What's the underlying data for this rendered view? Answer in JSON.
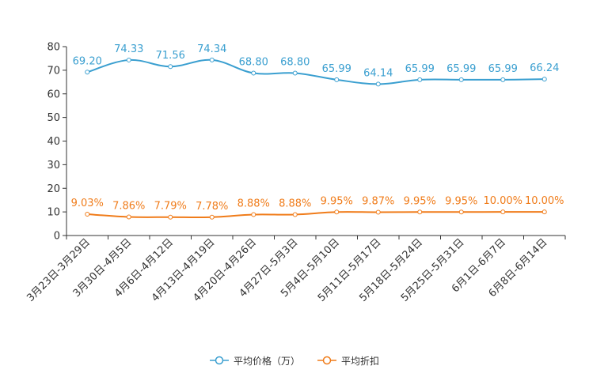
{
  "chart_data": {
    "type": "line",
    "title": "",
    "xlabel": "",
    "ylabel": "",
    "ylim": [
      0,
      80
    ],
    "yticks": [
      0,
      10,
      20,
      30,
      40,
      50,
      60,
      70,
      80
    ],
    "grid": false,
    "legend_position": "bottom-center",
    "categories": [
      "3月23日-3月29日",
      "3月30日-4月5日",
      "4月6日-4月12日",
      "4月13日-4月19日",
      "4月20日-4月26日",
      "4月27日-5月3日",
      "5月4日-5月10日",
      "5月11日-5月17日",
      "5月18日-5月24日",
      "5月25日-5月31日",
      "6月1日-6月7日",
      "6月8日-6月14日"
    ],
    "series": [
      {
        "name": "平均价格（万）",
        "color": "#3a9fd0",
        "values": [
          69.2,
          74.33,
          71.56,
          74.34,
          68.8,
          68.8,
          65.99,
          64.14,
          65.99,
          65.99,
          65.99,
          66.24
        ],
        "labels": [
          "69.20",
          "74.33",
          "71.56",
          "74.34",
          "68.80",
          "68.80",
          "65.99",
          "64.14",
          "65.99",
          "65.99",
          "65.99",
          "66.24"
        ]
      },
      {
        "name": "平均折扣",
        "color": "#f07c1a",
        "values": [
          9.03,
          7.86,
          7.79,
          7.78,
          8.88,
          8.88,
          9.95,
          9.87,
          9.95,
          9.95,
          10.0,
          10.0
        ],
        "labels": [
          "9.03%",
          "7.86%",
          "7.79%",
          "7.78%",
          "8.88%",
          "8.88%",
          "9.95%",
          "9.87%",
          "9.95%",
          "9.95%",
          "10.00%",
          "10.00%"
        ]
      }
    ]
  }
}
